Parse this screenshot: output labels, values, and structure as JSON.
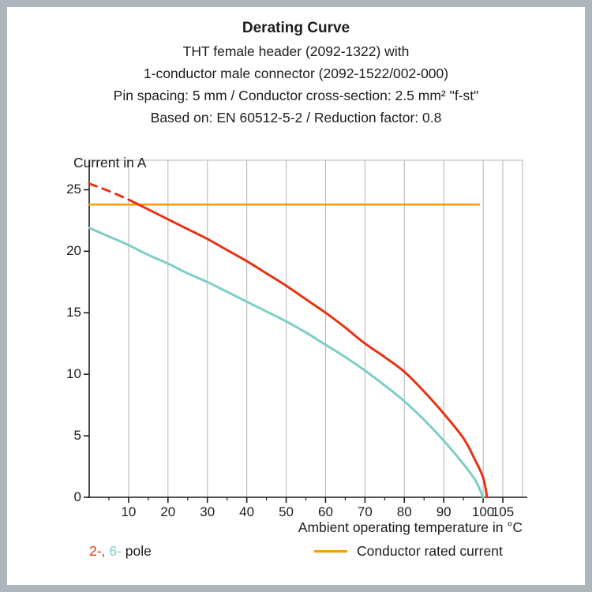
{
  "page": {
    "frame_color": "#aeb4bb",
    "background": "#ffffff"
  },
  "header": {
    "title": "Derating Curve",
    "subtitles": [
      "THT female header (2092-1322) with",
      "1-conductor male connector (2092-1522/002-000)",
      "Pin spacing: 5 mm / Conductor cross-section: 2.5 mm² \"f-st\"",
      "Based on: EN 60512-5-2 / Reduction factor: 0.8"
    ]
  },
  "chart_data": {
    "type": "line",
    "title": "Derating Curve",
    "xlabel": "Ambient operating temperature in °C",
    "ylabel": "Current in A",
    "x_range": [
      0,
      110
    ],
    "y_range": [
      0,
      27.4
    ],
    "x_ticks": [
      10,
      20,
      30,
      40,
      50,
      60,
      70,
      80,
      90,
      100,
      105
    ],
    "x_minor_ticks": [
      5,
      15,
      25,
      35,
      45,
      55,
      65,
      75,
      85,
      95
    ],
    "y_ticks": [
      0,
      5,
      10,
      15,
      20,
      25
    ],
    "grid": "vertical-only",
    "grid_color": "#b3b3b3",
    "axis_color": "#1d1d1b",
    "legend_position": "bottom",
    "series": [
      {
        "name": "Conductor rated current",
        "color": "#f59a00",
        "style": "solid",
        "width": 2.5,
        "points": [
          [
            0,
            23.8
          ],
          [
            99,
            23.8
          ]
        ]
      },
      {
        "name": "2-pole derating (extrapolated)",
        "color": "#e63312",
        "style": "dashed",
        "width": 3,
        "points": [
          [
            0,
            25.5
          ],
          [
            5,
            24.9
          ],
          [
            10,
            24.2
          ]
        ]
      },
      {
        "name": "2-pole derating",
        "color": "#e63312",
        "style": "solid",
        "width": 3,
        "points": [
          [
            10,
            24.2
          ],
          [
            15,
            23.4
          ],
          [
            20,
            22.6
          ],
          [
            25,
            21.8
          ],
          [
            30,
            21.0
          ],
          [
            35,
            20.1
          ],
          [
            40,
            19.2
          ],
          [
            45,
            18.2
          ],
          [
            50,
            17.2
          ],
          [
            55,
            16.1
          ],
          [
            60,
            15.0
          ],
          [
            65,
            13.8
          ],
          [
            70,
            12.5
          ],
          [
            75,
            11.4
          ],
          [
            80,
            10.2
          ],
          [
            85,
            8.6
          ],
          [
            90,
            6.8
          ],
          [
            95,
            4.8
          ],
          [
            98,
            3.0
          ],
          [
            100,
            1.6
          ],
          [
            101,
            0
          ]
        ]
      },
      {
        "name": "6-pole derating",
        "color": "#7fcdc7",
        "style": "solid",
        "width": 3,
        "points": [
          [
            0,
            21.9
          ],
          [
            5,
            21.2
          ],
          [
            10,
            20.5
          ],
          [
            15,
            19.7
          ],
          [
            20,
            19.0
          ],
          [
            25,
            18.2
          ],
          [
            30,
            17.5
          ],
          [
            35,
            16.7
          ],
          [
            40,
            15.9
          ],
          [
            45,
            15.1
          ],
          [
            50,
            14.3
          ],
          [
            55,
            13.4
          ],
          [
            60,
            12.4
          ],
          [
            65,
            11.4
          ],
          [
            70,
            10.3
          ],
          [
            75,
            9.1
          ],
          [
            80,
            7.8
          ],
          [
            85,
            6.3
          ],
          [
            90,
            4.6
          ],
          [
            95,
            2.7
          ],
          [
            98,
            1.4
          ],
          [
            100,
            0
          ]
        ]
      }
    ]
  },
  "legend": {
    "pole_first": "2-,",
    "pole_first_color": "#e63312",
    "pole_second": "6-",
    "pole_second_color": "#7fcdc7",
    "pole_suffix": "pole",
    "rated_label": "Conductor rated current",
    "rated_color": "#f59a00"
  }
}
